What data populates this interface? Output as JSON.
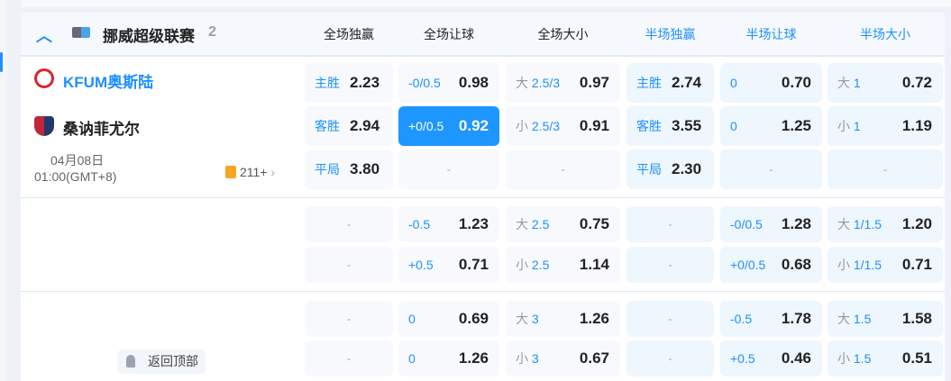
{
  "league": {
    "name": "挪威超级联赛",
    "count": "2"
  },
  "columns": [
    {
      "label": "全场独赢",
      "color": "#222222"
    },
    {
      "label": "全场让球",
      "color": "#222222"
    },
    {
      "label": "全场大小",
      "color": "#222222"
    },
    {
      "label": "半场独赢",
      "color": "#1e90ff"
    },
    {
      "label": "半场让球",
      "color": "#1e90ff"
    },
    {
      "label": "半场大小",
      "color": "#1e90ff"
    }
  ],
  "match": {
    "home": "KFUM奥斯陆",
    "away": "桑讷菲尤尔",
    "date": "04月08日",
    "time": "01:00(GMT+8)",
    "more_markets": "211+"
  },
  "colors": {
    "accent": "#1e90ff",
    "home_team": "#1e90ff"
  },
  "rows": [
    [
      {
        "label": "主胜",
        "odds": "2.23"
      },
      {
        "line": "-0/0.5",
        "odds": "0.98"
      },
      {
        "pre": "大",
        "line": "2.5/3",
        "odds": "0.97"
      },
      {
        "label": "主胜",
        "odds": "2.74"
      },
      {
        "line": "0",
        "odds": "0.70"
      },
      {
        "pre": "大",
        "line": "1",
        "odds": "0.72"
      }
    ],
    [
      {
        "label": "客胜",
        "odds": "2.94"
      },
      {
        "line": "+0/0.5",
        "odds": "0.92",
        "selected": true
      },
      {
        "pre": "小",
        "line": "2.5/3",
        "odds": "0.91"
      },
      {
        "label": "客胜",
        "odds": "3.55"
      },
      {
        "line": "0",
        "odds": "1.25"
      },
      {
        "pre": "小",
        "line": "1",
        "odds": "1.19"
      }
    ],
    [
      {
        "label": "平局",
        "odds": "3.80"
      },
      {
        "empty": "-"
      },
      {
        "empty": "-"
      },
      {
        "label": "平局",
        "odds": "2.30"
      },
      {
        "empty": "-"
      },
      {
        "empty": "-"
      }
    ],
    [
      {
        "empty": "-"
      },
      {
        "line": "-0.5",
        "odds": "1.23"
      },
      {
        "pre": "大",
        "line": "2.5",
        "odds": "0.75"
      },
      {
        "empty": "-"
      },
      {
        "line": "-0/0.5",
        "odds": "1.28"
      },
      {
        "pre": "大",
        "line": "1/1.5",
        "odds": "1.20"
      }
    ],
    [
      {
        "empty": "-"
      },
      {
        "line": "+0.5",
        "odds": "0.71"
      },
      {
        "pre": "小",
        "line": "2.5",
        "odds": "1.14"
      },
      {
        "empty": "-"
      },
      {
        "line": "+0/0.5",
        "odds": "0.68"
      },
      {
        "pre": "小",
        "line": "1/1.5",
        "odds": "0.71"
      }
    ],
    [
      {
        "empty": "-"
      },
      {
        "line": "0",
        "odds": "0.69"
      },
      {
        "pre": "大",
        "line": "3",
        "odds": "1.26"
      },
      {
        "empty": "-"
      },
      {
        "line": "-0.5",
        "odds": "1.78"
      },
      {
        "pre": "大",
        "line": "1.5",
        "odds": "1.58"
      }
    ],
    [
      {
        "empty": "-"
      },
      {
        "line": "0",
        "odds": "1.26"
      },
      {
        "pre": "小",
        "line": "3",
        "odds": "0.67"
      },
      {
        "empty": "-"
      },
      {
        "line": "+0.5",
        "odds": "0.46"
      },
      {
        "pre": "小",
        "line": "1.5",
        "odds": "0.51"
      }
    ]
  ],
  "back_to_top": "返回顶部"
}
